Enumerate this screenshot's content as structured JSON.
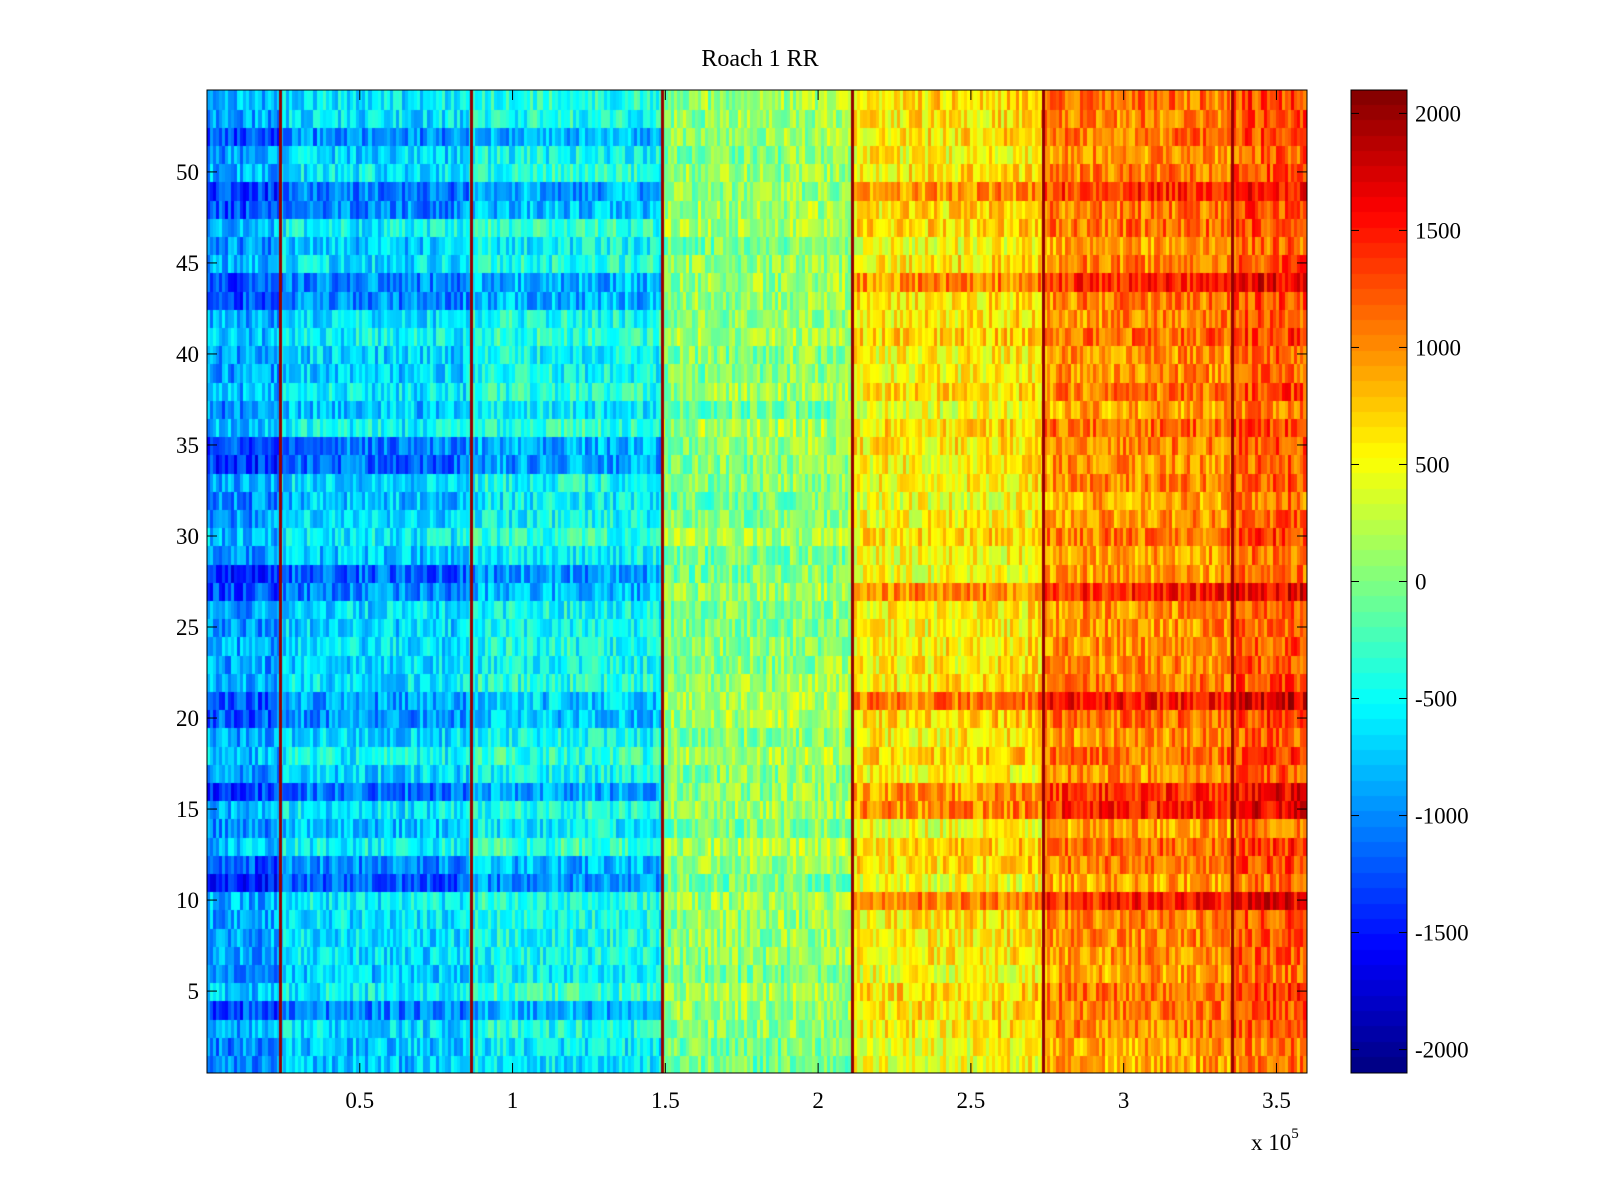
{
  "chart_data": {
    "type": "heatmap",
    "title": "Roach 1 RR",
    "xlabel": "",
    "ylabel": "",
    "x_exponent_label": "x 10",
    "x_exponent_power": "5",
    "xlim": [
      0,
      3.6
    ],
    "ylim": [
      0.5,
      54.5
    ],
    "rows": 54,
    "columns": 360,
    "x_ticks": [
      0.5,
      1,
      1.5,
      2,
      2.5,
      3,
      3.5
    ],
    "x_tick_labels": [
      "0.5",
      "1",
      "1.5",
      "2",
      "2.5",
      "3",
      "3.5"
    ],
    "y_ticks": [
      5,
      10,
      15,
      20,
      25,
      30,
      35,
      40,
      45,
      50
    ],
    "y_tick_labels": [
      "5",
      "10",
      "15",
      "20",
      "25",
      "30",
      "35",
      "40",
      "45",
      "50"
    ],
    "colormap": "jet",
    "clim": [
      -2100,
      2100
    ],
    "colorbar_ticks": [
      2000,
      1500,
      1000,
      500,
      0,
      -500,
      -1000,
      -1500,
      -2000
    ],
    "colorbar_tick_labels": [
      "2000",
      "1500",
      "1000",
      "500",
      "0",
      "-500",
      "-1000",
      "-1500",
      "-2000"
    ],
    "segment_boundaries_x": [
      0.24,
      0.865,
      1.49,
      2.11,
      2.735,
      3.355
    ],
    "segment_mean_levels": [
      -900,
      -650,
      -450,
      100,
      550,
      900,
      1050
    ],
    "row_emphasis": {
      "dark_blue_rows": [
        4,
        11,
        12,
        16,
        20,
        21,
        27,
        28,
        34,
        35,
        43,
        44,
        48,
        49,
        52
      ],
      "hot_rows": [
        10,
        15,
        16,
        21,
        27,
        44,
        49
      ]
    }
  }
}
